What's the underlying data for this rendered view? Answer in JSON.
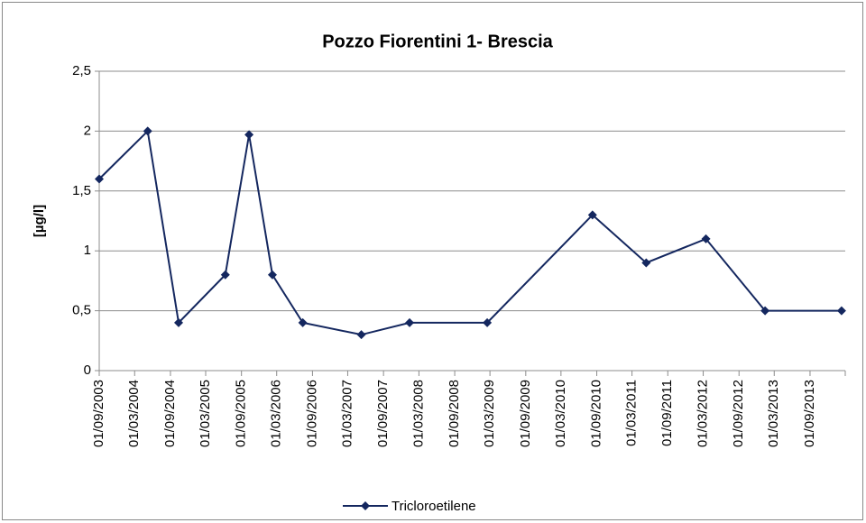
{
  "chart_data": {
    "type": "line",
    "title": "Pozzo Fiorentini 1- Brescia",
    "y_label": "[µg/l]",
    "x": [
      "01/09/2003",
      "07/05/2004",
      "13/10/2004",
      "10/06/2005",
      "10/10/2005",
      "07/02/2006",
      "13/07/2006",
      "10/05/2007",
      "13/01/2008",
      "15/02/2009",
      "10/08/2010",
      "13/05/2011",
      "15/03/2012",
      "13/01/2013",
      "10/02/2014"
    ],
    "series": [
      {
        "name": "Tricloroetilene",
        "color": "#14275f",
        "values": [
          1.6,
          2.0,
          0.4,
          0.8,
          1.97,
          0.8,
          0.4,
          0.3,
          0.4,
          0.4,
          1.3,
          0.9,
          1.1,
          0.5,
          0.5
        ]
      }
    ],
    "xlim": [
      "01/09/2003",
      "01/03/2014"
    ],
    "xticks": [
      "01/09/2003",
      "01/03/2004",
      "01/09/2004",
      "01/03/2005",
      "01/09/2005",
      "01/03/2006",
      "01/09/2006",
      "01/03/2007",
      "01/09/2007",
      "01/03/2008",
      "01/09/2008",
      "01/03/2009",
      "01/09/2009",
      "01/03/2010",
      "01/09/2010",
      "01/03/2011",
      "01/09/2011",
      "01/03/2012",
      "01/09/2012",
      "01/03/2013",
      "01/09/2013"
    ],
    "ylim": [
      0,
      2.5
    ],
    "yticks": [
      0,
      {
        "value": 0.5,
        "label": "0,5"
      },
      1,
      {
        "value": 1.5,
        "label": "1,5"
      },
      2,
      {
        "value": 2.5,
        "label": "2,5"
      }
    ],
    "grid": true,
    "legend": "bottom"
  }
}
